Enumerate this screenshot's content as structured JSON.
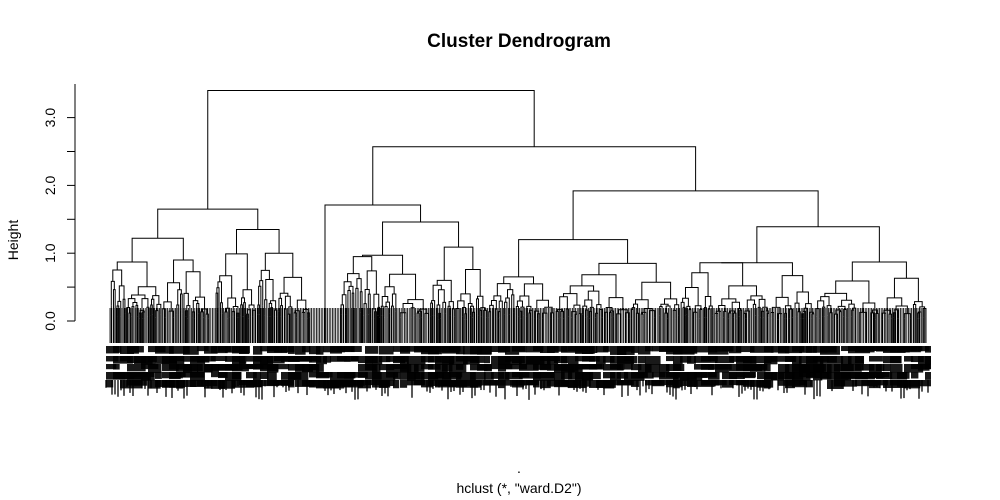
{
  "chart_data": {
    "type": "dendrogram",
    "title": "Cluster Dendrogram",
    "ylabel": "Height",
    "xlabel": ".",
    "sublabel": "hclust (*, \"ward.D2\")",
    "method": "ward.D2",
    "ylim": [
      0,
      3.4
    ],
    "y_ticks": [
      0.0,
      0.5,
      1.0,
      1.5,
      2.0,
      2.5,
      3.0
    ],
    "y_tick_labels": [
      "0.0",
      "1.0",
      "2.0",
      "3.0"
    ],
    "main_merges": [
      {
        "id": "root",
        "height": 3.4
      },
      {
        "id": "A",
        "height": 1.65
      },
      {
        "id": "B",
        "height": 2.57
      },
      {
        "id": "A1",
        "height": 1.22
      },
      {
        "id": "A2",
        "height": 1.35
      },
      {
        "id": "B1",
        "height": 1.71
      },
      {
        "id": "B2",
        "height": 1.92
      },
      {
        "id": "B1b",
        "height": 1.46
      },
      {
        "id": "B2a",
        "height": 1.2
      },
      {
        "id": "B2b",
        "height": 1.39
      },
      {
        "id": "B1b1",
        "height": 0.97
      },
      {
        "id": "B1b2",
        "height": 1.09
      },
      {
        "id": "B2b1",
        "height": 0.86
      },
      {
        "id": "B2b2",
        "height": 0.87
      }
    ]
  }
}
